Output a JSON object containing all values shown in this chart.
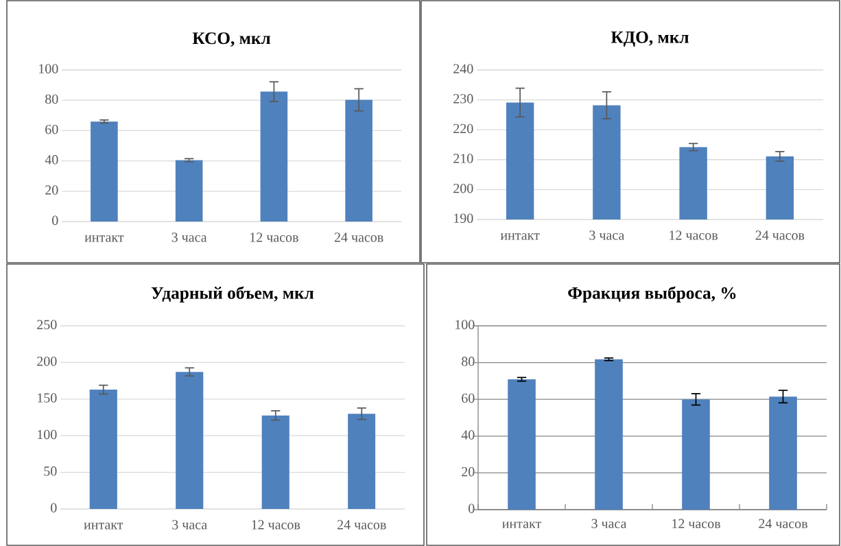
{
  "chart_data": [
    {
      "type": "bar",
      "title": "КСО, мкл",
      "categories": [
        "интакт",
        "3 часа",
        "12 часов",
        "24 часов"
      ],
      "values": [
        66,
        40.5,
        85.7,
        80.3
      ],
      "errors": [
        1,
        1,
        6.5,
        7.3
      ],
      "color": "#4f81bd",
      "ylim": [
        0,
        100
      ],
      "yticks": [
        0,
        20,
        40,
        60,
        80,
        100
      ],
      "grid": "y"
    },
    {
      "type": "bar",
      "title": "КДО, мкл",
      "categories": [
        "интакт",
        "3 часа",
        "12 часов",
        "24 часов"
      ],
      "values": [
        229.1,
        228.2,
        214.2,
        211.1
      ],
      "errors": [
        4.8,
        4.5,
        1.2,
        1.6
      ],
      "color": "#4f81bd",
      "ylim": [
        190,
        240
      ],
      "yticks": [
        190,
        200,
        210,
        220,
        230,
        240
      ],
      "grid": "y"
    },
    {
      "type": "bar",
      "title": "Ударный объем, мкл",
      "categories": [
        "интакт",
        "3 часа",
        "12 часов",
        "24 часов"
      ],
      "values": [
        162.9,
        187.1,
        127.6,
        130
      ],
      "errors": [
        6,
        5.5,
        6.4,
        7.8
      ],
      "color": "#4f81bd",
      "ylim": [
        0,
        250
      ],
      "yticks": [
        0,
        50,
        100,
        150,
        200,
        250
      ],
      "grid": "y"
    },
    {
      "type": "bar",
      "title": "Фракция выброса, %",
      "categories": [
        "интакт",
        "3 часа",
        "12 часов",
        "24 часов"
      ],
      "values": [
        70.9,
        81.8,
        60,
        61.5
      ],
      "errors": [
        1,
        0.7,
        3.1,
        3.4
      ],
      "color": "#4f81bd",
      "ylim": [
        0,
        100
      ],
      "yticks": [
        0,
        20,
        40,
        60,
        80,
        100
      ],
      "grid": "y"
    }
  ]
}
